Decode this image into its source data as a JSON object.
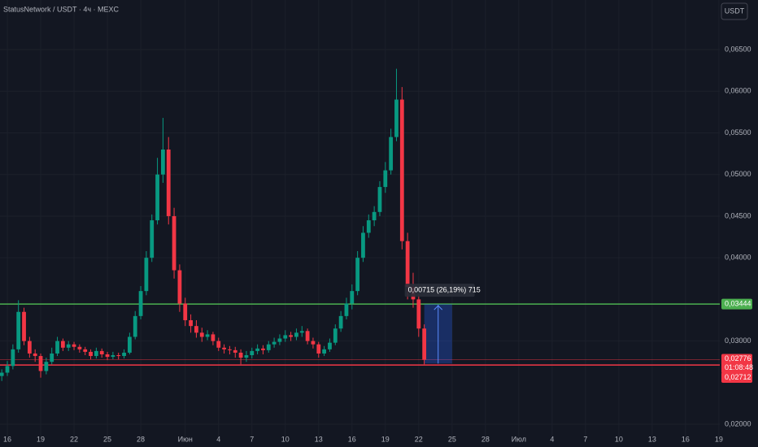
{
  "chart_data": {
    "type": "candlestick",
    "title": "StatusNetwork / USDT · 4ч · MEXC",
    "currency_button": "USDT",
    "up_color": "#089981",
    "down_color": "#f23645",
    "grid": true,
    "xlim": [
      -0.66,
      64.08
    ],
    "ylim": [
      0.01854,
      0.07096
    ],
    "xticks": [
      {
        "value": 0,
        "label": "16"
      },
      {
        "value": 3,
        "label": "19"
      },
      {
        "value": 6,
        "label": "22"
      },
      {
        "value": 9,
        "label": "25"
      },
      {
        "value": 12,
        "label": "28"
      },
      {
        "value": 16,
        "label": "Июн"
      },
      {
        "value": 19,
        "label": "4"
      },
      {
        "value": 22,
        "label": "7"
      },
      {
        "value": 25,
        "label": "10"
      },
      {
        "value": 28,
        "label": "13"
      },
      {
        "value": 31,
        "label": "16"
      },
      {
        "value": 34,
        "label": "19"
      },
      {
        "value": 37,
        "label": "22"
      },
      {
        "value": 40,
        "label": "25"
      },
      {
        "value": 43,
        "label": "28"
      },
      {
        "value": 46,
        "label": "Июл"
      },
      {
        "value": 49,
        "label": "4"
      },
      {
        "value": 52,
        "label": "7"
      },
      {
        "value": 55,
        "label": "10"
      },
      {
        "value": 58,
        "label": "13"
      },
      {
        "value": 61,
        "label": "16"
      },
      {
        "value": 64,
        "label": "19"
      }
    ],
    "yticks": [
      {
        "value": 0.02,
        "label": "0,02000"
      },
      {
        "value": 0.03,
        "label": "0,03000"
      },
      {
        "value": 0.04,
        "label": "0,04000"
      },
      {
        "value": 0.045,
        "label": "0,04500"
      },
      {
        "value": 0.05,
        "label": "0,05000"
      },
      {
        "value": 0.055,
        "label": "0,05500"
      },
      {
        "value": 0.06,
        "label": "0,06000"
      },
      {
        "value": 0.065,
        "label": "0,06500"
      }
    ],
    "x": [
      -0.5,
      0,
      0.5,
      1,
      1.5,
      2,
      2.5,
      3,
      3.5,
      4,
      4.5,
      5,
      5.5,
      6,
      6.5,
      7,
      7.5,
      8,
      8.5,
      9,
      9.5,
      10,
      10.5,
      11,
      11.5,
      12,
      12.5,
      13,
      13.5,
      14,
      14.5,
      15,
      15.5,
      16,
      16.5,
      17,
      17.5,
      18,
      18.5,
      19,
      19.5,
      20,
      20.5,
      21,
      21.5,
      22,
      22.5,
      23,
      23.5,
      24,
      24.5,
      25,
      25.5,
      26,
      26.5,
      27,
      27.5,
      28,
      28.5,
      29,
      29.5,
      30,
      30.5,
      31,
      31.5,
      32,
      32.5,
      33,
      33.5,
      34,
      34.5,
      35,
      35.5,
      36,
      36.5,
      37,
      37.5
    ],
    "open": [
      0.0258,
      0.0262,
      0.027,
      0.029,
      0.0335,
      0.03,
      0.0285,
      0.0282,
      0.0264,
      0.0275,
      0.0285,
      0.03,
      0.0292,
      0.0296,
      0.0293,
      0.029,
      0.0287,
      0.0282,
      0.0288,
      0.0284,
      0.0281,
      0.0283,
      0.0282,
      0.0286,
      0.0305,
      0.033,
      0.036,
      0.04,
      0.0445,
      0.05,
      0.053,
      0.045,
      0.0385,
      0.0345,
      0.0325,
      0.0318,
      0.031,
      0.0305,
      0.0308,
      0.03,
      0.0292,
      0.029,
      0.0289,
      0.0286,
      0.028,
      0.0283,
      0.0288,
      0.0291,
      0.0289,
      0.0296,
      0.0299,
      0.0303,
      0.0307,
      0.0305,
      0.031,
      0.0312,
      0.03,
      0.0296,
      0.0285,
      0.029,
      0.0298,
      0.0315,
      0.033,
      0.0345,
      0.036,
      0.04,
      0.043,
      0.0445,
      0.0455,
      0.0485,
      0.0505,
      0.0545,
      0.059,
      0.042,
      0.0365,
      0.035,
      0.0315
    ],
    "high": [
      0.0266,
      0.0276,
      0.0296,
      0.0349,
      0.034,
      0.0305,
      0.029,
      0.0285,
      0.028,
      0.0292,
      0.0305,
      0.0303,
      0.03,
      0.0299,
      0.0296,
      0.0293,
      0.029,
      0.0292,
      0.0291,
      0.0287,
      0.0287,
      0.0286,
      0.029,
      0.031,
      0.0336,
      0.0366,
      0.0408,
      0.0452,
      0.052,
      0.0568,
      0.0545,
      0.046,
      0.0392,
      0.0352,
      0.0332,
      0.0325,
      0.0316,
      0.0313,
      0.0311,
      0.0304,
      0.0296,
      0.0294,
      0.0293,
      0.029,
      0.0288,
      0.0292,
      0.0296,
      0.0295,
      0.03,
      0.0304,
      0.0308,
      0.0313,
      0.0311,
      0.0315,
      0.0318,
      0.0315,
      0.0304,
      0.0299,
      0.0294,
      0.0303,
      0.032,
      0.0336,
      0.0352,
      0.0368,
      0.0408,
      0.0438,
      0.0452,
      0.0462,
      0.0492,
      0.0515,
      0.0555,
      0.0627,
      0.0605,
      0.043,
      0.0382,
      0.0356,
      0.032
    ],
    "low": [
      0.0252,
      0.0258,
      0.0266,
      0.0286,
      0.0295,
      0.028,
      0.0275,
      0.0256,
      0.026,
      0.0272,
      0.0282,
      0.0288,
      0.0288,
      0.0289,
      0.0286,
      0.0283,
      0.0278,
      0.0279,
      0.028,
      0.0277,
      0.0278,
      0.0278,
      0.0279,
      0.0284,
      0.0302,
      0.0326,
      0.0355,
      0.0395,
      0.044,
      0.049,
      0.044,
      0.0375,
      0.0335,
      0.0318,
      0.031,
      0.0304,
      0.0299,
      0.0301,
      0.0295,
      0.0288,
      0.0285,
      0.0284,
      0.028,
      0.0272,
      0.0275,
      0.0279,
      0.0284,
      0.0284,
      0.0286,
      0.0292,
      0.0295,
      0.0299,
      0.03,
      0.0301,
      0.0305,
      0.0296,
      0.0291,
      0.028,
      0.0282,
      0.0287,
      0.0295,
      0.0311,
      0.0326,
      0.0338,
      0.0355,
      0.0395,
      0.0424,
      0.0438,
      0.045,
      0.0478,
      0.05,
      0.054,
      0.041,
      0.035,
      0.034,
      0.0305,
      0.0272
    ],
    "close": [
      0.0262,
      0.027,
      0.029,
      0.0335,
      0.03,
      0.0285,
      0.0282,
      0.0264,
      0.0275,
      0.0285,
      0.03,
      0.0292,
      0.0296,
      0.0293,
      0.029,
      0.0287,
      0.0282,
      0.0288,
      0.0284,
      0.0281,
      0.0283,
      0.0282,
      0.0286,
      0.0305,
      0.033,
      0.036,
      0.04,
      0.0445,
      0.05,
      0.053,
      0.045,
      0.0385,
      0.0345,
      0.0325,
      0.0318,
      0.031,
      0.0305,
      0.0308,
      0.03,
      0.0292,
      0.029,
      0.0289,
      0.0286,
      0.028,
      0.0283,
      0.0288,
      0.0291,
      0.0289,
      0.0296,
      0.0299,
      0.0303,
      0.0307,
      0.0305,
      0.031,
      0.0312,
      0.03,
      0.0296,
      0.0285,
      0.029,
      0.0298,
      0.0315,
      0.033,
      0.0345,
      0.036,
      0.04,
      0.043,
      0.0445,
      0.0455,
      0.0485,
      0.0505,
      0.0545,
      0.059,
      0.042,
      0.0365,
      0.035,
      0.0315,
      0.02776
    ],
    "price_lines": [
      {
        "value": 0.03444,
        "label": "0,03444",
        "color": "#4caf50"
      },
      {
        "value": 0.02712,
        "label": "0,02712",
        "color": "#f23645"
      }
    ],
    "last_price": {
      "value": 0.02776,
      "label": "0,02776",
      "countdown": "01:08:48",
      "color": "#f23645"
    },
    "measure": {
      "from": 0.02729,
      "to": 0.03444,
      "x": [
        37.5,
        40
      ],
      "label": "0,00715 (26,19%) 715",
      "color": "#2962ff"
    }
  }
}
